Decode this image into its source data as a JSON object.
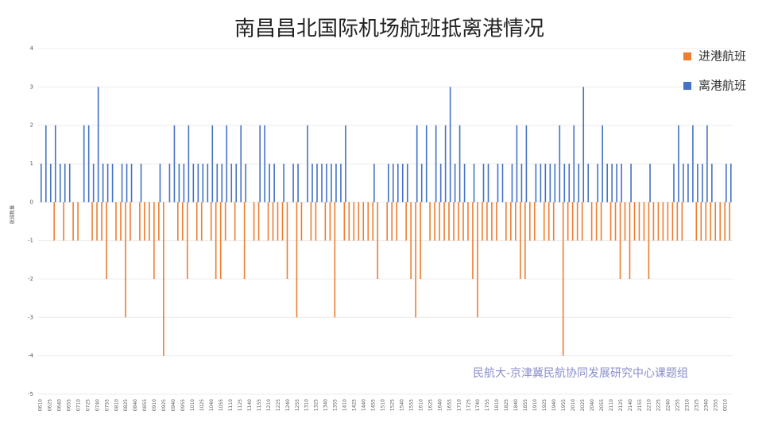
{
  "chart_data": {
    "type": "bar",
    "title": "南昌昌北国际机场航班抵离港情况",
    "y_label": "航班数量",
    "annotation": "民航大-京津冀民航协同发展研究中心课题组",
    "legend": "top-right",
    "grid": true,
    "ylim": [
      -5,
      4
    ],
    "yticks": [
      4,
      3,
      2,
      1,
      0,
      -1,
      -2,
      -3,
      -4,
      -5
    ],
    "categories": [
      "0610",
      null,
      "0625",
      null,
      "0640",
      null,
      "0655",
      null,
      "0710",
      null,
      "0725",
      null,
      "0740",
      null,
      "0755",
      null,
      "0810",
      null,
      "0825",
      null,
      "0840",
      null,
      "0855",
      null,
      "0910",
      null,
      "0925",
      null,
      "0940",
      null,
      "0955",
      null,
      "1010",
      null,
      "1025",
      null,
      "1040",
      null,
      "1055",
      null,
      "1110",
      null,
      "1125",
      null,
      "1140",
      null,
      "1155",
      null,
      "1210",
      null,
      "1225",
      null,
      "1240",
      null,
      "1255",
      null,
      "1310",
      null,
      "1325",
      null,
      "1340",
      null,
      "1355",
      null,
      "1410",
      null,
      "1425",
      null,
      "1440",
      null,
      "1455",
      null,
      "1510",
      null,
      "1525",
      null,
      "1540",
      null,
      "1555",
      null,
      "1610",
      null,
      "1625",
      null,
      "1640",
      null,
      "1655",
      null,
      "1710",
      null,
      "1725",
      null,
      "1740",
      null,
      "1755",
      null,
      "1810",
      null,
      "1825",
      null,
      "1840",
      null,
      "1855",
      null,
      "1910",
      null,
      "1925",
      null,
      "1940",
      null,
      "1955",
      null,
      "2010",
      null,
      "2025",
      null,
      "2040",
      null,
      "2055",
      null,
      "2110",
      null,
      "2125",
      null,
      "2140",
      null,
      "2155",
      null,
      "2210",
      null,
      "2225",
      null,
      "2240",
      null,
      "2255",
      null,
      "2310",
      null,
      "2325",
      null,
      "2340",
      null,
      "2355",
      null,
      "0010",
      null
    ],
    "series": [
      {
        "name": "进港航班",
        "color": "#ed7d31",
        "values": [
          0,
          0,
          0,
          -1,
          0,
          -1,
          0,
          -1,
          -1,
          0,
          0,
          -1,
          -1,
          -1,
          -2,
          0,
          -1,
          -1,
          -3,
          -1,
          0,
          -1,
          -1,
          -1,
          -2,
          -1,
          -4,
          0,
          0,
          -1,
          -1,
          -2,
          0,
          -1,
          -1,
          0,
          -1,
          -2,
          -2,
          -1,
          0,
          -1,
          0,
          -2,
          0,
          -1,
          -1,
          0,
          -1,
          -1,
          -1,
          -1,
          -2,
          0,
          -3,
          -1,
          0,
          -1,
          -1,
          0,
          -1,
          -1,
          -3,
          0,
          -1,
          -1,
          -1,
          -1,
          -1,
          -1,
          -1,
          -2,
          0,
          -1,
          -1,
          -1,
          0,
          -1,
          -2,
          -3,
          -2,
          0,
          -1,
          -1,
          -1,
          -1,
          -1,
          -1,
          -1,
          -1,
          -1,
          -2,
          -3,
          -1,
          -1,
          -1,
          -1,
          0,
          -1,
          -1,
          -1,
          -2,
          -2,
          -1,
          -1,
          0,
          -1,
          -1,
          -1,
          0,
          -4,
          -1,
          -1,
          -1,
          -1,
          0,
          -1,
          -1,
          -1,
          0,
          -1,
          -1,
          -2,
          -1,
          -2,
          -1,
          -1,
          -1,
          -2,
          -1,
          -1,
          -1,
          -1,
          -1,
          -1,
          -1,
          0,
          0,
          -1,
          -1,
          -1,
          -1,
          -1,
          -1,
          -1,
          -1
        ]
      },
      {
        "name": "离港航班",
        "color": "#4472c4",
        "values": [
          1,
          2,
          1,
          2,
          1,
          1,
          1,
          0,
          0,
          2,
          2,
          1,
          3,
          1,
          1,
          1,
          0,
          1,
          1,
          1,
          0,
          1,
          0,
          0,
          0,
          1,
          0,
          1,
          2,
          1,
          1,
          2,
          1,
          1,
          1,
          1,
          2,
          1,
          1,
          2,
          1,
          1,
          2,
          1,
          0,
          0,
          2,
          2,
          1,
          1,
          0,
          1,
          0,
          1,
          1,
          0,
          2,
          1,
          1,
          1,
          1,
          1,
          1,
          1,
          2,
          0,
          0,
          0,
          0,
          0,
          1,
          0,
          0,
          1,
          1,
          1,
          1,
          1,
          0,
          2,
          1,
          2,
          0,
          2,
          1,
          2,
          3,
          1,
          2,
          1,
          0,
          1,
          0,
          1,
          1,
          0,
          1,
          1,
          0,
          1,
          2,
          1,
          2,
          0,
          1,
          1,
          1,
          1,
          1,
          2,
          1,
          1,
          2,
          1,
          3,
          1,
          0,
          1,
          2,
          1,
          1,
          1,
          1,
          0,
          1,
          0,
          0,
          0,
          1,
          0,
          0,
          0,
          0,
          1,
          2,
          1,
          1,
          2,
          1,
          1,
          2,
          1,
          0,
          0,
          1,
          1
        ]
      }
    ]
  }
}
